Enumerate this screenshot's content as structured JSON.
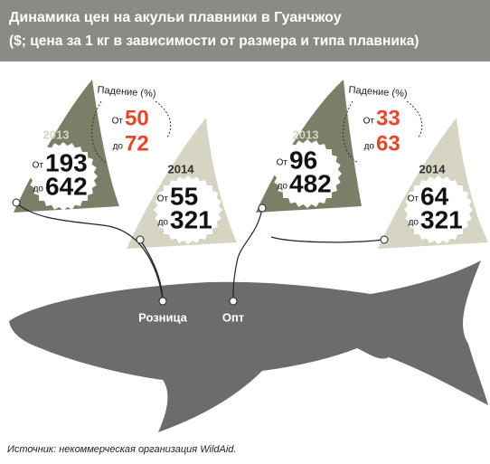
{
  "header": {
    "title": "Динамика цен на акульи плавники в Гуанчжоу",
    "subtitle": "($; цена за 1 кг в зависимости от размера и типа плавника)"
  },
  "groups": [
    {
      "label": "Розница",
      "decline": {
        "label": "Падение (%)",
        "from_label": "От",
        "from": 50,
        "to_label": "до",
        "to": 72
      },
      "fins": [
        {
          "year": "2013",
          "from_label": "От",
          "from": 193,
          "to_label": "до",
          "to": 642
        },
        {
          "year": "2014",
          "from_label": "От",
          "from": 55,
          "to_label": "до",
          "to": 321
        }
      ]
    },
    {
      "label": "Опт",
      "decline": {
        "label": "Падение (%)",
        "from_label": "От",
        "from": 33,
        "to_label": "до",
        "to": 63
      },
      "fins": [
        {
          "year": "2013",
          "from_label": "От",
          "from": 96,
          "to_label": "до",
          "to": 482
        },
        {
          "year": "2014",
          "from_label": "От",
          "from": 64,
          "to_label": "до",
          "to": 321
        }
      ]
    }
  ],
  "source": "Источник: некоммерческая организация WildAid."
}
